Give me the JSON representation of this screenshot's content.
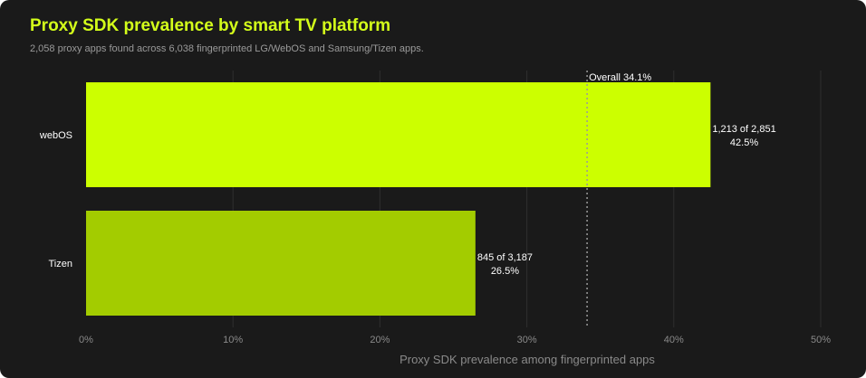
{
  "chart_data": {
    "type": "bar",
    "orientation": "horizontal",
    "title": "Proxy SDK prevalence by smart TV platform",
    "subtitle": "2,058 proxy apps found across 6,038 fingerprinted LG/WebOS and Samsung/Tizen apps.",
    "xlabel": "Proxy SDK prevalence among fingerprinted apps",
    "xlim": [
      0,
      50
    ],
    "xticks": [
      0,
      10,
      20,
      30,
      40,
      50
    ],
    "xtick_labels": [
      "0%",
      "10%",
      "20%",
      "30%",
      "40%",
      "50%"
    ],
    "grid": "vertical",
    "categories": [
      "webOS",
      "Tizen"
    ],
    "values": [
      42.5,
      26.5
    ],
    "bar_colors": [
      "#ccff00",
      "#a3cc00"
    ],
    "data_labels": [
      {
        "count": "1,213 of 2,851",
        "percent": "42.5%"
      },
      {
        "count": "845 of 3,187",
        "percent": "26.5%"
      }
    ],
    "reference_line": {
      "value": 34.1,
      "label": "Overall 34.1%"
    }
  }
}
